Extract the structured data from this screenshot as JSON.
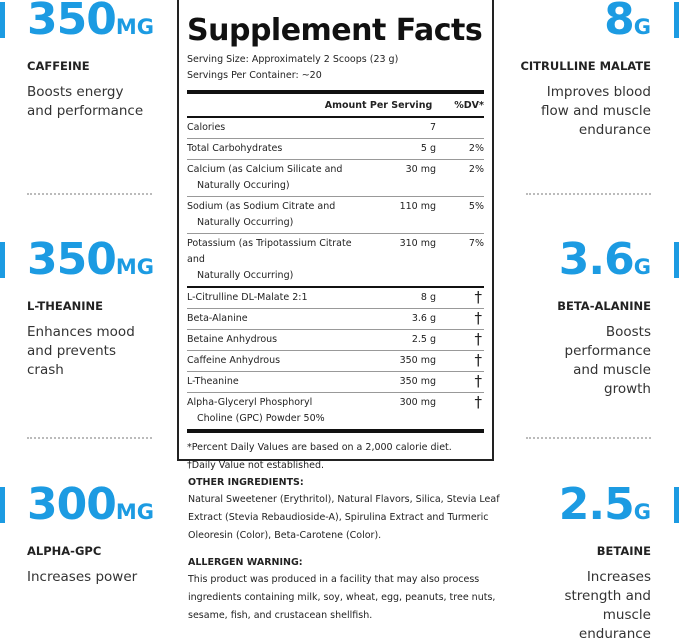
{
  "accent_color": "#1c9be2",
  "left_highlights": [
    {
      "amount": "350",
      "unit": "MG",
      "name": "CAFFEINE",
      "description": "Boosts energy and performance"
    },
    {
      "amount": "350",
      "unit": "MG",
      "name": "L-THEANINE",
      "description": "Enhances mood and prevents crash"
    },
    {
      "amount": "300",
      "unit": "MG",
      "name": "ALPHA-GPC",
      "description": "Increases power"
    }
  ],
  "right_highlights": [
    {
      "amount": "8",
      "unit": "G",
      "name": "CITRULLINE MALATE",
      "description": "Improves blood flow and muscle endurance"
    },
    {
      "amount": "3.6",
      "unit": "G",
      "name": "BETA-ALANINE",
      "description": "Boosts performance and muscle growth"
    },
    {
      "amount": "2.5",
      "unit": "G",
      "name": "BETAINE",
      "description": "Increases strength and muscle endurance"
    }
  ],
  "facts": {
    "title": "Supplement Facts",
    "serving_size": "Serving Size: Approximately 2 Scoops (23 g)",
    "servings_per_container": "Servings Per Container: ~20",
    "header_amount": "Amount Per Serving",
    "header_dv": "%DV*",
    "rows": [
      {
        "name": "Calories",
        "name2": "",
        "amount": "7",
        "dv": ""
      },
      {
        "name": "Total Carbohydrates",
        "name2": "",
        "amount": "5 g",
        "dv": "2%"
      },
      {
        "name": "Calcium (as Calcium Silicate and",
        "name2": "Naturally Occuring)",
        "amount": "30 mg",
        "dv": "2%"
      },
      {
        "name": "Sodium (as Sodium Citrate and",
        "name2": "Naturally Occurring)",
        "amount": "110 mg",
        "dv": "5%"
      },
      {
        "name": "Potassium (as Tripotassium Citrate and",
        "name2": "Naturally Occurring)",
        "amount": "310 mg",
        "dv": "7%"
      },
      {
        "name": "L-Citrulline DL-Malate 2:1",
        "name2": "",
        "amount": "8 g",
        "dv": "†"
      },
      {
        "name": "Beta-Alanine",
        "name2": "",
        "amount": "3.6 g",
        "dv": "†"
      },
      {
        "name": "Betaine Anhydrous",
        "name2": "",
        "amount": "2.5 g",
        "dv": "†"
      },
      {
        "name": "Caffeine Anhydrous",
        "name2": "",
        "amount": "350 mg",
        "dv": "†"
      },
      {
        "name": "L-Theanine",
        "name2": "",
        "amount": "350 mg",
        "dv": "†"
      },
      {
        "name": "Alpha-Glyceryl Phosphoryl",
        "name2": "Choline (GPC) Powder 50%",
        "amount": "300 mg",
        "dv": "†"
      }
    ],
    "footnote1": "*Percent Daily Values are based on a 2,000 calorie diet.",
    "footnote2": "†Daily Value not established."
  },
  "other_ingredients": {
    "heading": "OTHER INGREDIENTS:",
    "text": "Natural Sweetener (Erythritol), Natural Flavors, Silica, Stevia Leaf Extract (Stevia Rebaudioside-A), Spirulina Extract and Turmeric Oleoresin (Color), Beta-Carotene (Color)."
  },
  "allergen": {
    "heading": "ALLERGEN WARNING:",
    "text": "This product was produced in a facility that may also process ingredients containing milk, soy, wheat, egg, peanuts, tree nuts, sesame, fish, and crustacean shellfish."
  }
}
